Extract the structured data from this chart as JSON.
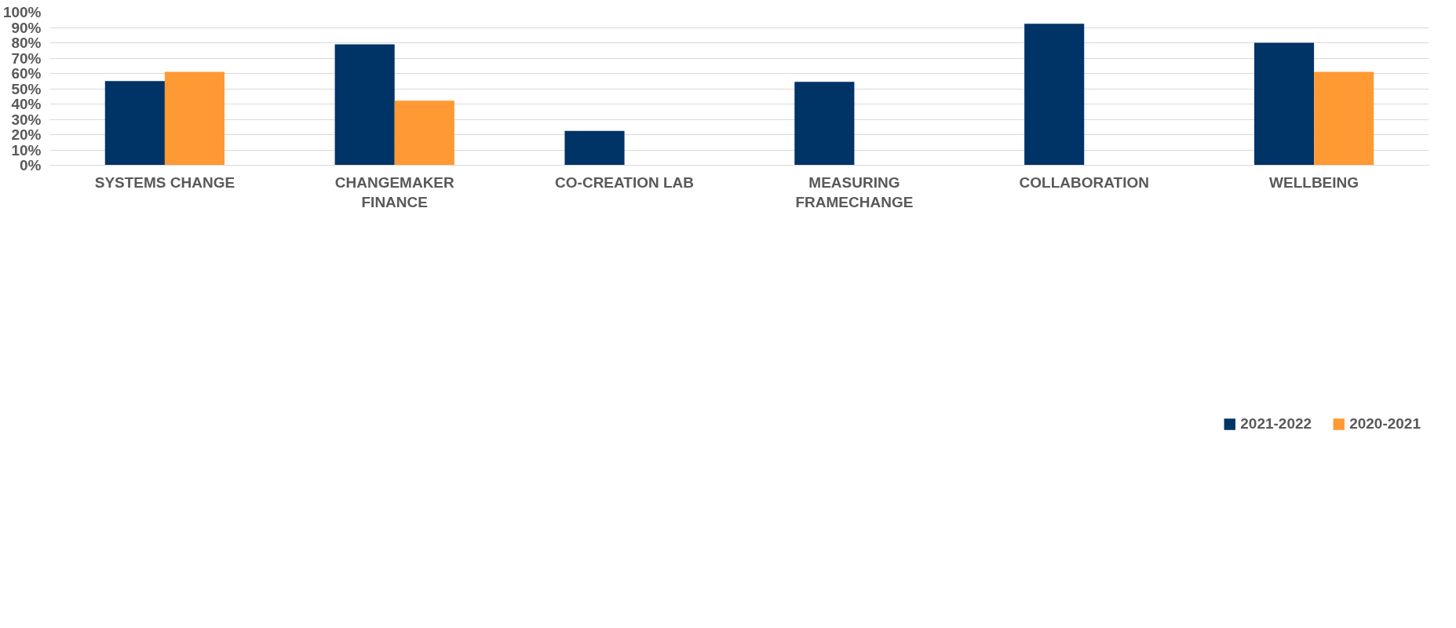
{
  "chart_data": {
    "type": "bar",
    "categories": [
      "SYSTEMS CHANGE",
      "CHANGEMAKER FINANCE",
      "CO-CREATION LAB",
      "MEASURING FRAMECHANGE",
      "COLLABORATION",
      "WELLBEING"
    ],
    "series": [
      {
        "name": "2021-2022",
        "color": "#003366",
        "values": [
          55,
          79,
          22.4,
          54.5,
          92.4,
          80
        ]
      },
      {
        "name": "2020-2021",
        "color": "#ff9933",
        "values": [
          61,
          42.2,
          null,
          null,
          null,
          61
        ]
      }
    ],
    "ylim": [
      0,
      100
    ],
    "yticks": [
      {
        "value": 0,
        "label": "0%"
      },
      {
        "value": 10,
        "label": "10%"
      },
      {
        "value": 20,
        "label": "20%"
      },
      {
        "value": 30,
        "label": "30%"
      },
      {
        "value": 40,
        "label": "40%"
      },
      {
        "value": 50,
        "label": "50%"
      },
      {
        "value": 60,
        "label": "60%"
      },
      {
        "value": 70,
        "label": "70%"
      },
      {
        "value": 80,
        "label": "80%"
      },
      {
        "value": 90,
        "label": "90%"
      },
      {
        "value": 100,
        "label": "100%"
      }
    ],
    "grid": "y",
    "legend": "bottom"
  }
}
